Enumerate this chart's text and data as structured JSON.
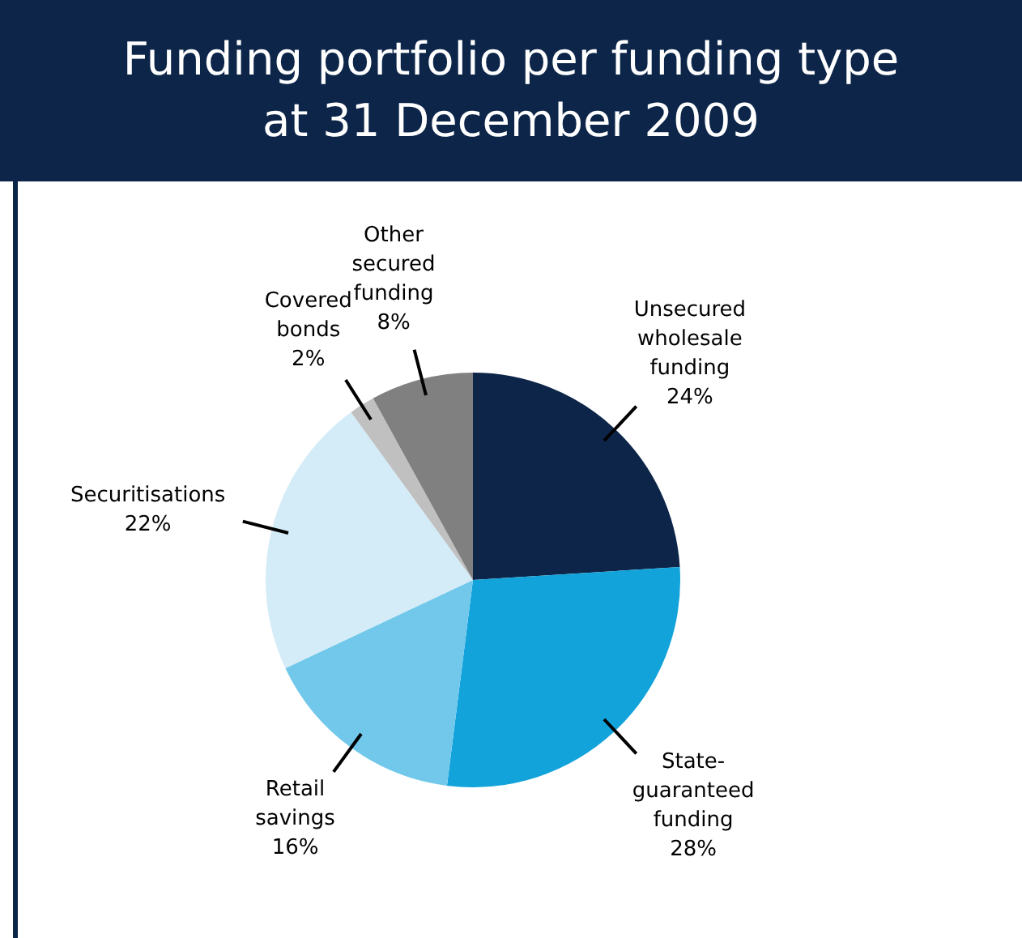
{
  "chart_data": {
    "type": "pie",
    "title": "Funding portfolio per funding type\nat 31 December 2009",
    "categories": [
      "Unsecured wholesale funding",
      "State-guaranteed funding",
      "Retail savings",
      "Securitisations",
      "Covered bonds",
      "Other secured funding"
    ],
    "values": [
      24,
      28,
      16,
      22,
      2,
      8
    ],
    "colors": [
      "#0c2549",
      "#12a3db",
      "#72c8ea",
      "#d3ecf7",
      "#c0c0c0",
      "#808080"
    ],
    "value_labels": [
      "24%",
      "28%",
      "16%",
      "22%",
      "2%",
      "8%"
    ],
    "legend": false
  }
}
